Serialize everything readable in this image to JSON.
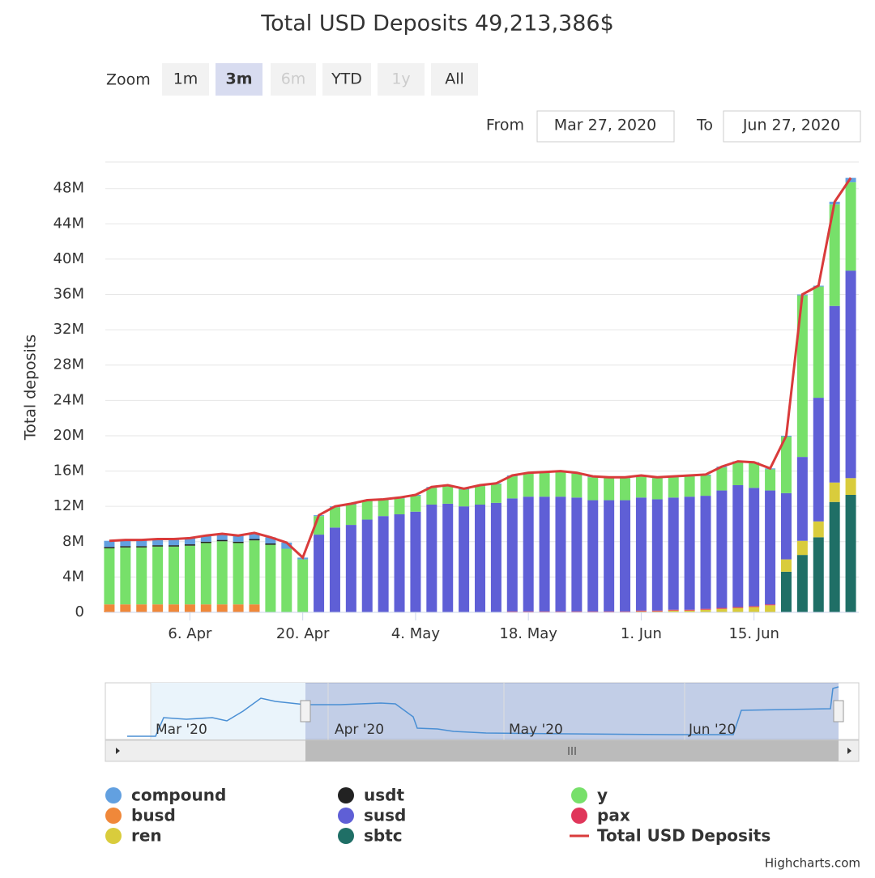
{
  "chart_data": {
    "type": "bar",
    "title": "Total USD Deposits 49,213,386$",
    "y_label": "Total deposits",
    "range_selector": {
      "zoom_label": "Zoom",
      "buttons": [
        "1m",
        "3m",
        "6m",
        "YTD",
        "1y",
        "All"
      ],
      "from_label": "From",
      "from": "Mar 27, 2020",
      "to_label": "To",
      "to": "Jun 27, 2020"
    },
    "navigator_labels": [
      "Mar '20",
      "Apr '20",
      "May '20",
      "Jun '20"
    ],
    "credit": "Highcharts.com",
    "x": [
      "2020-03-27",
      "2020-03-29",
      "2020-03-31",
      "2020-04-02",
      "2020-04-04",
      "2020-04-06",
      "2020-04-08",
      "2020-04-10",
      "2020-04-12",
      "2020-04-14",
      "2020-04-16",
      "2020-04-18",
      "2020-04-20",
      "2020-04-22",
      "2020-04-24",
      "2020-04-26",
      "2020-04-28",
      "2020-04-30",
      "2020-05-02",
      "2020-05-04",
      "2020-05-06",
      "2020-05-08",
      "2020-05-10",
      "2020-05-12",
      "2020-05-14",
      "2020-05-16",
      "2020-05-18",
      "2020-05-20",
      "2020-05-22",
      "2020-05-24",
      "2020-05-26",
      "2020-05-28",
      "2020-05-30",
      "2020-06-01",
      "2020-06-03",
      "2020-06-05",
      "2020-06-07",
      "2020-06-09",
      "2020-06-11",
      "2020-06-13",
      "2020-06-15",
      "2020-06-17",
      "2020-06-19",
      "2020-06-21",
      "2020-06-23",
      "2020-06-25",
      "2020-06-27"
    ],
    "xlim": [
      "2020-03-26",
      "2020-06-28"
    ],
    "xticks": [
      {
        "value": "2020-04-06",
        "label": "6. Apr"
      },
      {
        "value": "2020-04-20",
        "label": "20. Apr"
      },
      {
        "value": "2020-05-04",
        "label": "4. May"
      },
      {
        "value": "2020-05-18",
        "label": "18. May"
      },
      {
        "value": "2020-06-01",
        "label": "1. Jun"
      },
      {
        "value": "2020-06-15",
        "label": "15. Jun"
      }
    ],
    "ylim": [
      0,
      51
    ],
    "yticks": [
      {
        "value": 0,
        "label": "0"
      },
      {
        "value": 4,
        "label": "4M"
      },
      {
        "value": 8,
        "label": "8M"
      },
      {
        "value": 12,
        "label": "12M"
      },
      {
        "value": 16,
        "label": "16M"
      },
      {
        "value": 20,
        "label": "20M"
      },
      {
        "value": 24,
        "label": "24M"
      },
      {
        "value": 28,
        "label": "28M"
      },
      {
        "value": 32,
        "label": "32M"
      },
      {
        "value": 36,
        "label": "36M"
      },
      {
        "value": 40,
        "label": "40M"
      },
      {
        "value": 44,
        "label": "44M"
      },
      {
        "value": 48,
        "label": "48M"
      }
    ],
    "grid": true,
    "series": [
      {
        "name": "compound",
        "color": "#62a0e0",
        "values": [
          0.7,
          0.7,
          0.7,
          0.7,
          0.7,
          0.7,
          0.7,
          0.7,
          0.7,
          0.7,
          0.7,
          0.7,
          0.2,
          0.1,
          0.1,
          0.1,
          0.1,
          0.1,
          0.1,
          0.1,
          0.1,
          0.1,
          0.1,
          0.1,
          0.1,
          0.1,
          0.1,
          0.1,
          0.1,
          0.1,
          0.1,
          0.1,
          0.1,
          0.1,
          0.1,
          0.1,
          0.1,
          0.1,
          0.1,
          0.1,
          0.1,
          0.1,
          0.1,
          0.1,
          0.1,
          0.3,
          0.5
        ]
      },
      {
        "name": "busd",
        "color": "#f0883a",
        "values": [
          0.9,
          0.9,
          0.9,
          0.9,
          0.9,
          0.9,
          0.9,
          0.9,
          0.9,
          0.9,
          0,
          0,
          0,
          0,
          0,
          0,
          0,
          0,
          0,
          0,
          0,
          0,
          0,
          0,
          0,
          0,
          0,
          0,
          0,
          0,
          0,
          0,
          0,
          0,
          0,
          0,
          0,
          0,
          0,
          0,
          0,
          0,
          0,
          0,
          0,
          0,
          0
        ]
      },
      {
        "name": "ren",
        "color": "#d9cc3c",
        "values": [
          0,
          0,
          0,
          0,
          0,
          0,
          0,
          0,
          0,
          0,
          0,
          0,
          0,
          0,
          0,
          0,
          0,
          0,
          0,
          0,
          0,
          0,
          0,
          0,
          0,
          0,
          0,
          0,
          0,
          0,
          0,
          0,
          0,
          0.1,
          0.1,
          0.2,
          0.2,
          0.3,
          0.4,
          0.5,
          0.6,
          0.8,
          1.4,
          1.6,
          1.8,
          2.2,
          1.9
        ]
      },
      {
        "name": "usdt",
        "color": "#222222",
        "values": [
          0.15,
          0.15,
          0.15,
          0.15,
          0.15,
          0.15,
          0.15,
          0.15,
          0.15,
          0.15,
          0.15,
          0,
          0,
          0,
          0,
          0,
          0,
          0,
          0,
          0,
          0,
          0,
          0,
          0,
          0,
          0,
          0,
          0,
          0,
          0,
          0,
          0,
          0,
          0,
          0,
          0,
          0,
          0,
          0,
          0,
          0,
          0,
          0,
          0,
          0,
          0,
          0
        ]
      },
      {
        "name": "susd",
        "color": "#5f5fd6",
        "values": [
          0,
          0,
          0,
          0,
          0,
          0,
          0,
          0,
          0,
          0,
          0,
          0,
          0,
          8.8,
          9.6,
          9.9,
          10.5,
          10.9,
          11.1,
          11.4,
          12.2,
          12.3,
          12.0,
          12.2,
          12.4,
          12.8,
          13.0,
          13.0,
          13.0,
          12.9,
          12.6,
          12.6,
          12.6,
          12.8,
          12.6,
          12.7,
          12.8,
          12.8,
          13.3,
          13.8,
          13.4,
          12.9,
          7.5,
          9.5,
          14.0,
          20.0,
          23.5
        ]
      },
      {
        "name": "sbtc",
        "color": "#1f6f66",
        "values": [
          0,
          0,
          0,
          0,
          0,
          0,
          0,
          0,
          0,
          0,
          0,
          0,
          0,
          0,
          0,
          0,
          0,
          0,
          0,
          0,
          0,
          0,
          0,
          0,
          0,
          0,
          0,
          0,
          0,
          0,
          0,
          0,
          0,
          0,
          0,
          0,
          0,
          0,
          0,
          0,
          0,
          0,
          4.6,
          6.5,
          8.5,
          12.5,
          13.3
        ]
      },
      {
        "name": "y",
        "color": "#77e06a",
        "values": [
          6.35,
          6.45,
          6.45,
          6.55,
          6.55,
          6.65,
          6.95,
          7.15,
          6.95,
          7.25,
          7.65,
          7.2,
          6.0,
          2.1,
          2.3,
          2.3,
          2.1,
          1.8,
          1.8,
          1.8,
          1.9,
          2.0,
          1.9,
          2.1,
          2.1,
          2.5,
          2.6,
          2.7,
          2.8,
          2.7,
          2.6,
          2.5,
          2.5,
          2.4,
          2.4,
          2.3,
          2.3,
          2.3,
          2.6,
          2.6,
          2.8,
          2.4,
          6.4,
          18.3,
          12.6,
          11.5,
          10.0
        ]
      },
      {
        "name": "pax",
        "color": "#e0365a",
        "values": [
          0,
          0,
          0,
          0,
          0,
          0,
          0,
          0,
          0,
          0,
          0,
          0,
          0,
          0,
          0,
          0,
          0,
          0,
          0,
          0,
          0,
          0,
          0,
          0,
          0,
          0.1,
          0.1,
          0.1,
          0.1,
          0.1,
          0.1,
          0.1,
          0.1,
          0.1,
          0.1,
          0.1,
          0.1,
          0.1,
          0.1,
          0.1,
          0.1,
          0.1,
          0,
          0,
          0,
          0,
          0
        ]
      },
      {
        "name": "Total USD Deposits",
        "color": "#d93b3b",
        "line": true,
        "values": [
          8.1,
          8.2,
          8.2,
          8.3,
          8.3,
          8.4,
          8.7,
          8.9,
          8.7,
          9.0,
          8.5,
          7.9,
          6.2,
          11.0,
          12.0,
          12.3,
          12.7,
          12.8,
          13.0,
          13.3,
          14.2,
          14.4,
          14.0,
          14.4,
          14.6,
          15.5,
          15.8,
          15.9,
          16.0,
          15.8,
          15.4,
          15.3,
          15.3,
          15.5,
          15.3,
          15.4,
          15.5,
          15.6,
          16.5,
          17.1,
          17.0,
          16.3,
          20.0,
          36.0,
          37.0,
          46.5,
          49.2
        ]
      }
    ]
  }
}
